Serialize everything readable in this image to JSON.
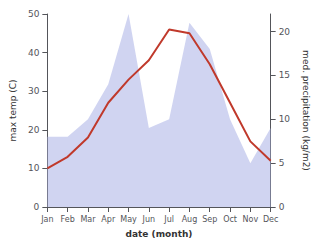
{
  "chart_data": {
    "type": "line",
    "xlabel": "date (month)",
    "ylabel": "max temp (C)",
    "y2label": "med. precipitation (kg/m2)",
    "categories": [
      "Jan",
      "Feb",
      "Mar",
      "Apr",
      "May",
      "Jun",
      "Jul",
      "Aug",
      "Sep",
      "Oct",
      "Nov",
      "Dec"
    ],
    "series": [
      {
        "type": "area",
        "color": "#b0b8e8",
        "axis": "y2",
        "values": [
          8,
          8,
          10,
          14,
          22,
          9,
          10,
          21,
          18,
          10,
          5,
          9
        ]
      },
      {
        "type": "line",
        "color": "#c0392b",
        "values": [
          10,
          13,
          18,
          27,
          33,
          38,
          46,
          45,
          37,
          27,
          17,
          12
        ]
      }
    ],
    "ylim": [
      0,
      50
    ],
    "yticks": [
      0,
      10,
      20,
      30,
      40,
      50
    ],
    "y2lim": [
      0,
      22.0
    ],
    "y2ticks": [
      0,
      5,
      10,
      15,
      20
    ],
    "grid": false
  }
}
